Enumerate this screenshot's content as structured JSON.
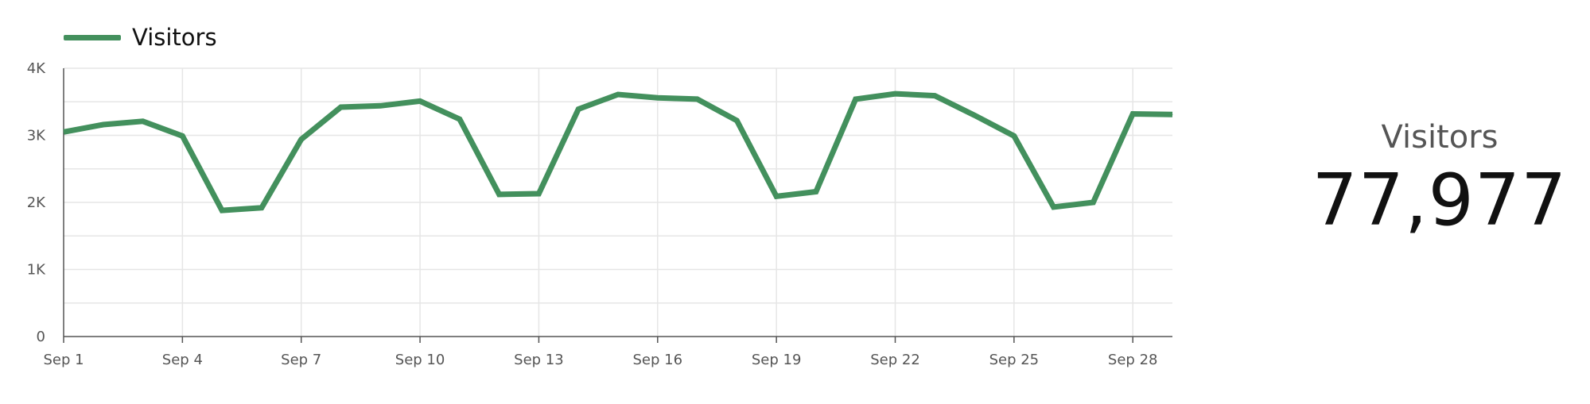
{
  "legend": {
    "label": "Visitors"
  },
  "summary": {
    "label": "Visitors",
    "value": "77,977"
  },
  "colors": {
    "line": "#43905d",
    "grid": "#e6e6e6",
    "axis": "#555555"
  },
  "chart_data": {
    "type": "line",
    "title": "",
    "xlabel": "",
    "ylabel": "",
    "legend_position": "top-left",
    "grid": true,
    "ylim": [
      0,
      4000
    ],
    "y_ticks": [
      0,
      1000,
      2000,
      3000,
      4000
    ],
    "y_tick_labels": [
      "0",
      "1K",
      "2K",
      "3K",
      "4K"
    ],
    "xlim": [
      1,
      29
    ],
    "x_ticks": [
      1,
      4,
      7,
      10,
      13,
      16,
      19,
      22,
      25,
      28
    ],
    "x_tick_labels": [
      "Sep 1",
      "Sep 4",
      "Sep 7",
      "Sep 10",
      "Sep 13",
      "Sep 16",
      "Sep 19",
      "Sep 22",
      "Sep 25",
      "Sep 28"
    ],
    "x": [
      1,
      2,
      3,
      4,
      5,
      6,
      7,
      8,
      9,
      10,
      11,
      12,
      13,
      14,
      15,
      16,
      17,
      18,
      19,
      20,
      21,
      22,
      23,
      24,
      25,
      26,
      27,
      28,
      29
    ],
    "series": [
      {
        "name": "Visitors",
        "values": [
          3050,
          3160,
          3210,
          2990,
          1880,
          1920,
          2940,
          3420,
          3440,
          3510,
          3240,
          2120,
          2130,
          3390,
          3610,
          3560,
          3540,
          3220,
          2090,
          2160,
          3540,
          3620,
          3590,
          3300,
          2990,
          1930,
          2000,
          3320,
          3310
        ]
      }
    ]
  }
}
